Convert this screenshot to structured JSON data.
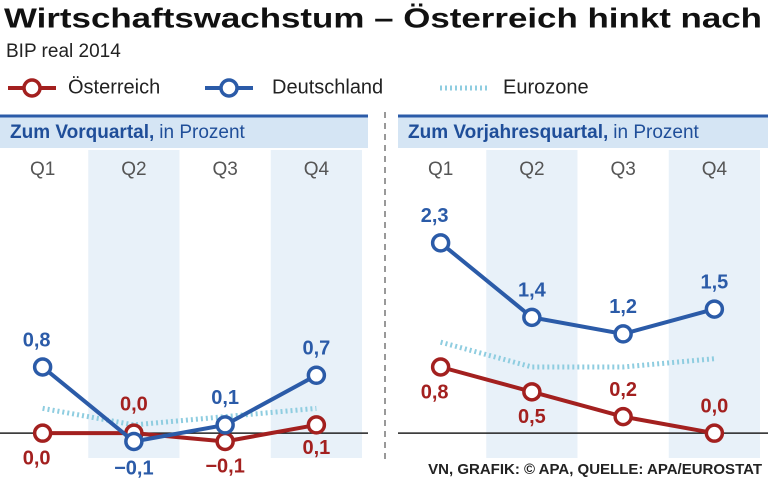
{
  "title": "Wirtschaftswachstum – Österreich hinkt nach",
  "subtitle": "BIP real 2014",
  "source": "VN, GRAFIK: © APA, QUELLE: APA/EUROSTAT",
  "chart_data": [
    {
      "type": "line",
      "title": "Zum Vorquartal,",
      "subtitle": "in Prozent",
      "categories": [
        "Q1",
        "Q2",
        "Q3",
        "Q4"
      ],
      "ylim": [
        -0.3,
        3.0
      ],
      "series": [
        {
          "name": "Österreich",
          "color": "#a3201f",
          "values": [
            0.0,
            0.0,
            -0.1,
            0.1
          ],
          "value_labels": [
            "0,0",
            "0,0",
            "−0,1",
            "0,1"
          ]
        },
        {
          "name": "Deutschland",
          "color": "#2b5ba8",
          "values": [
            0.8,
            -0.1,
            0.1,
            0.7
          ],
          "value_labels": [
            "0,8",
            "−0,1",
            "0,1",
            "0,7"
          ]
        },
        {
          "name": "Eurozone",
          "color": "#8fcde0",
          "linestyle": "dotted",
          "values": [
            0.3,
            0.1,
            0.2,
            0.3
          ]
        }
      ]
    },
    {
      "type": "line",
      "title": "Zum Vorjahresquartal,",
      "subtitle": "in Prozent",
      "categories": [
        "Q1",
        "Q2",
        "Q3",
        "Q4"
      ],
      "ylim": [
        -0.3,
        3.0
      ],
      "series": [
        {
          "color": "#a3201f",
          "values": [
            0.8,
            0.5,
            0.2,
            0.0
          ],
          "value_labels": [
            "0,8",
            "0,5",
            "0,2",
            "0,0"
          ]
        },
        {
          "color": "#2b5ba8",
          "values": [
            2.3,
            1.4,
            1.2,
            1.5
          ],
          "value_labels": [
            "2,3",
            "1,4",
            "1,2",
            "1,5"
          ]
        },
        {
          "color": "#8fcde0",
          "linestyle": "dotted",
          "values": [
            1.1,
            0.8,
            0.8,
            0.9
          ]
        }
      ]
    }
  ]
}
